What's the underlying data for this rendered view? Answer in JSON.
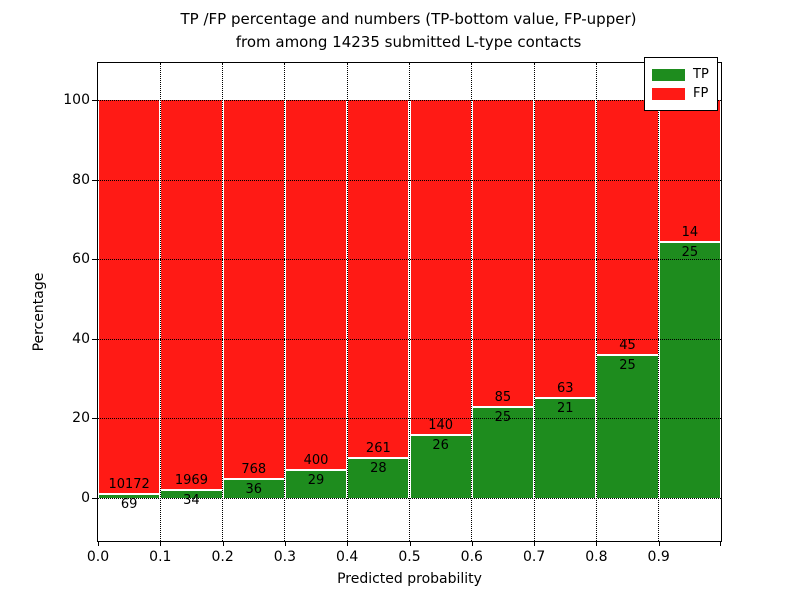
{
  "title": {
    "line1": "TP /FP percentage and numbers (TP-bottom value, FP-upper)",
    "line2": "from among 14235 submitted L-type contacts"
  },
  "chart_data": {
    "type": "bar",
    "stacked": true,
    "title": "TP /FP percentage and numbers (TP-bottom value, FP-upper) from among 14235 submitted L-type contacts",
    "xlabel": "Predicted probability",
    "ylabel": "Percentage",
    "bin_edges": [
      0.0,
      0.1,
      0.2,
      0.3,
      0.4,
      0.5,
      0.6,
      0.7,
      0.8,
      0.9,
      1.0
    ],
    "x_tick_labels": [
      "0.0",
      "0.1",
      "0.2",
      "0.3",
      "0.4",
      "0.5",
      "0.6",
      "0.7",
      "0.8",
      "0.9"
    ],
    "y_tick_labels": [
      "0",
      "20",
      "40",
      "60",
      "80",
      "100"
    ],
    "y_ticks": [
      0,
      20,
      40,
      60,
      80,
      100
    ],
    "xlim": [
      0.0,
      1.0
    ],
    "ylim": [
      -11,
      109
    ],
    "grid": true,
    "bar_heights_note": "bar heights are percentages: count/(TP+FP in bin)*100, stacked to 100%",
    "series": [
      {
        "name": "TP",
        "color": "#1e8c1e",
        "counts": [
          69,
          34,
          36,
          29,
          28,
          26,
          25,
          21,
          25,
          25
        ]
      },
      {
        "name": "FP",
        "color": "#ff1a15",
        "counts": [
          10172,
          1969,
          768,
          400,
          261,
          140,
          85,
          63,
          45,
          14
        ]
      }
    ],
    "tp_percentages": [
      0.67,
      1.7,
      4.48,
      6.76,
      9.69,
      15.66,
      22.73,
      25.0,
      35.71,
      64.1
    ],
    "legend_position": "upper right"
  },
  "legend": {
    "items": [
      {
        "label": "TP",
        "color": "#1e8c1e"
      },
      {
        "label": "FP",
        "color": "#ff1a15"
      }
    ]
  }
}
